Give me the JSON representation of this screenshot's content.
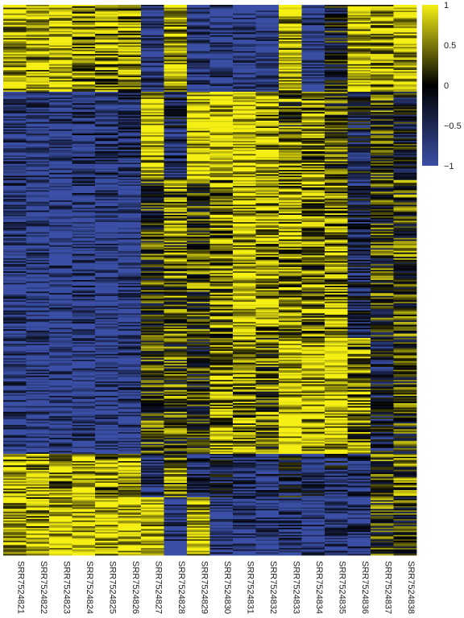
{
  "chart_data": {
    "type": "heatmap",
    "columns": [
      "SRR7524821",
      "SRR7524822",
      "SRR7524823",
      "SRR7524824",
      "SRR7524825",
      "SRR7524826",
      "SRR7524827",
      "SRR7524828",
      "SRR7524829",
      "SRR7524830",
      "SRR7524831",
      "SRR7524832",
      "SRR7524833",
      "SRR7524834",
      "SRR7524835",
      "SRR7524836",
      "SRR7524837",
      "SRR7524838"
    ],
    "value_range": [
      -1,
      1
    ],
    "colorbar_ticks": [
      "1",
      "0.5",
      "0",
      "−0.5",
      "−1"
    ],
    "colorbar_tick_values": [
      1,
      0.5,
      0,
      -0.5,
      -1
    ],
    "colorscale": [
      {
        "value": -1,
        "color": "#3a4fa5"
      },
      {
        "value": 0,
        "color": "#000000"
      },
      {
        "value": 1,
        "color": "#f5ef14"
      }
    ],
    "row_blocks": [
      {
        "rows": 60,
        "means": [
          0.85,
          0.8,
          0.9,
          0.55,
          0.5,
          0.6,
          -0.8,
          0.75,
          -0.85,
          -0.9,
          -0.9,
          -0.95,
          0.75,
          -0.8,
          -0.1,
          0.85,
          0.75,
          0.85
        ]
      },
      {
        "rows": 60,
        "means": [
          -0.8,
          -0.85,
          -0.8,
          -0.6,
          -0.75,
          -0.6,
          0.85,
          -0.5,
          0.9,
          0.95,
          0.95,
          0.7,
          0.3,
          0.5,
          0.3,
          -0.3,
          0.2,
          -0.2
        ]
      },
      {
        "rows": 110,
        "means": [
          -0.85,
          -0.9,
          -0.9,
          -0.8,
          -0.9,
          -0.85,
          0.1,
          0.4,
          0.2,
          0.5,
          0.85,
          0.7,
          0.6,
          0.5,
          0.6,
          -0.5,
          0.1,
          0.2
        ]
      },
      {
        "rows": 80,
        "means": [
          -0.85,
          -0.85,
          -0.9,
          -0.85,
          -0.9,
          -0.85,
          0.2,
          0.2,
          0.0,
          0.6,
          0.5,
          0.3,
          0.9,
          0.85,
          0.9,
          0.5,
          -0.3,
          0.1
        ]
      },
      {
        "rows": 30,
        "means": [
          0.7,
          0.75,
          0.7,
          0.8,
          0.6,
          0.85,
          -0.7,
          0.4,
          -0.6,
          -0.5,
          -0.8,
          -0.7,
          -0.3,
          -0.6,
          -0.5,
          -0.5,
          0.3,
          0.4
        ]
      },
      {
        "rows": 40,
        "means": [
          0.85,
          0.6,
          0.95,
          0.95,
          0.95,
          0.9,
          0.8,
          -0.9,
          0.9,
          -0.9,
          -0.8,
          -0.9,
          -0.7,
          -0.9,
          -0.8,
          -0.8,
          0.2,
          0.0
        ]
      }
    ],
    "noise": 0.45
  }
}
